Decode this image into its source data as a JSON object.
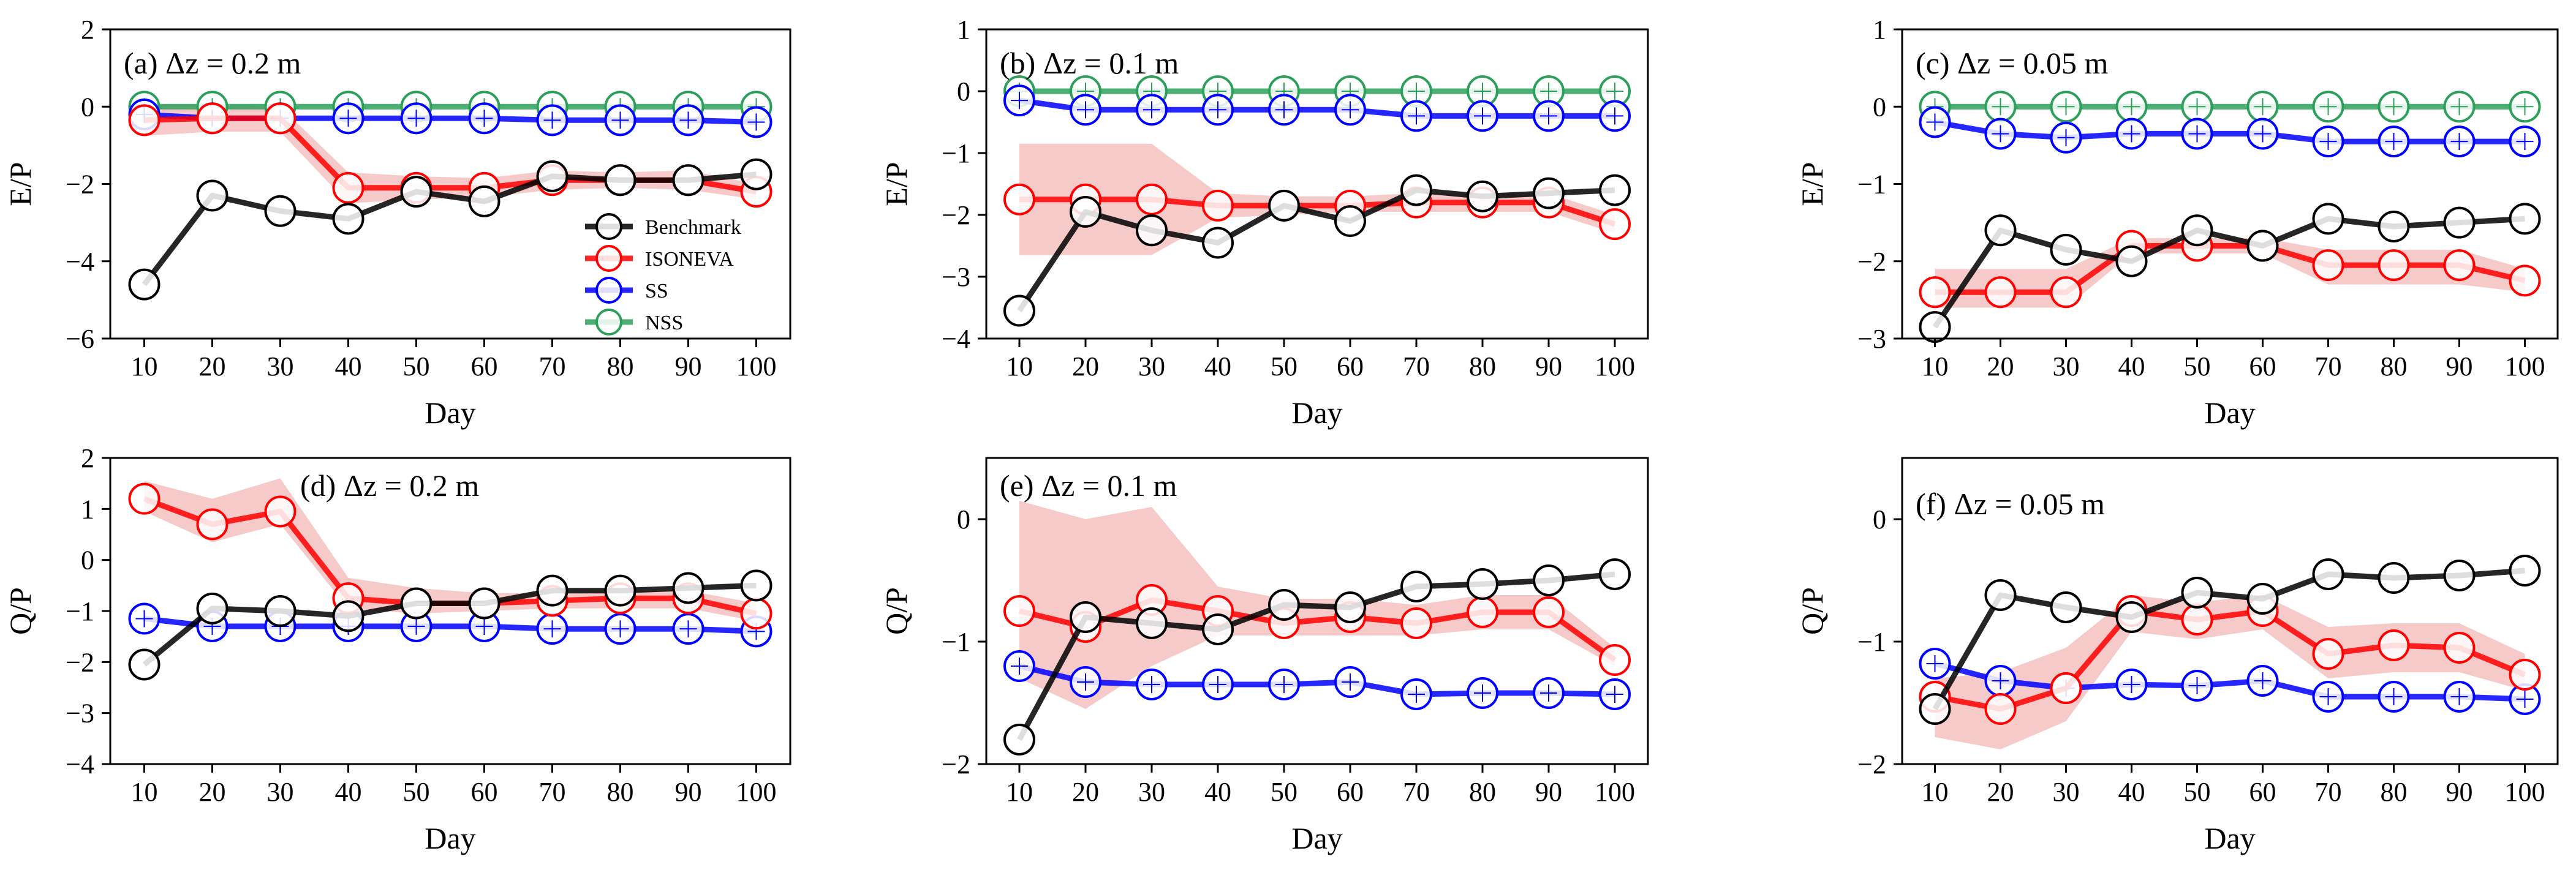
{
  "figure": {
    "legend": [
      {
        "name": "Benchmark",
        "color": "#000000"
      },
      {
        "name": "ISONEVA",
        "color": "#ff0000"
      },
      {
        "name": "SS",
        "color": "#0000ff"
      },
      {
        "name": "NSS",
        "color": "#2ca05a"
      }
    ],
    "colors": {
      "Benchmark": "#000000",
      "ISONEVA": "#ff0000",
      "SS": "#0000ff",
      "NSS": "#2ca05a",
      "band": "#f4b8b8"
    }
  },
  "chart_data": [
    {
      "type": "line",
      "panel": "(a) Δz = 0.2 m",
      "xlabel": "Day",
      "ylabel": "E/P",
      "x": [
        10,
        20,
        30,
        40,
        50,
        60,
        70,
        80,
        90,
        100
      ],
      "ylim": [
        -6,
        2
      ],
      "yticks": [
        -6,
        -4,
        -2,
        0,
        2
      ],
      "series": [
        {
          "name": "Benchmark",
          "values": [
            -4.6,
            -2.3,
            -2.7,
            -2.9,
            -2.2,
            -2.45,
            -1.8,
            -1.9,
            -1.9,
            -1.75
          ]
        },
        {
          "name": "ISONEVA",
          "values": [
            -0.35,
            -0.3,
            -0.3,
            -2.1,
            -2.1,
            -2.1,
            -1.9,
            -1.9,
            -1.9,
            -2.2
          ],
          "band_lower": [
            -0.75,
            -0.65,
            -0.65,
            -2.5,
            -2.4,
            -2.35,
            -2.15,
            -2.1,
            -2.15,
            -2.4
          ],
          "band_upper": [
            0.05,
            0.05,
            0.0,
            -1.7,
            -1.8,
            -1.85,
            -1.65,
            -1.7,
            -1.65,
            -2.0
          ]
        },
        {
          "name": "SS",
          "values": [
            -0.2,
            -0.3,
            -0.3,
            -0.3,
            -0.3,
            -0.3,
            -0.35,
            -0.35,
            -0.35,
            -0.4
          ]
        },
        {
          "name": "NSS",
          "values": [
            0,
            0,
            0,
            0,
            0,
            0,
            0,
            0,
            0,
            0
          ]
        }
      ]
    },
    {
      "type": "line",
      "panel": "(b) Δz = 0.1 m",
      "xlabel": "Day",
      "ylabel": "E/P",
      "x": [
        10,
        20,
        30,
        40,
        50,
        60,
        70,
        80,
        90,
        100
      ],
      "ylim": [
        -4,
        1
      ],
      "yticks": [
        -4,
        -3,
        -2,
        -1,
        0,
        1
      ],
      "series": [
        {
          "name": "Benchmark",
          "values": [
            -3.55,
            -1.95,
            -2.25,
            -2.45,
            -1.85,
            -2.1,
            -1.6,
            -1.7,
            -1.65,
            -1.6
          ]
        },
        {
          "name": "ISONEVA",
          "values": [
            -1.75,
            -1.75,
            -1.75,
            -1.85,
            -1.85,
            -1.85,
            -1.8,
            -1.8,
            -1.8,
            -2.15
          ],
          "band_lower": [
            -2.65,
            -2.65,
            -2.65,
            -2.05,
            -2.0,
            -1.95,
            -1.95,
            -1.95,
            -1.95,
            -2.3
          ],
          "band_upper": [
            -0.85,
            -0.85,
            -0.85,
            -1.65,
            -1.7,
            -1.7,
            -1.65,
            -1.65,
            -1.65,
            -2.0
          ]
        },
        {
          "name": "SS",
          "values": [
            -0.15,
            -0.3,
            -0.3,
            -0.3,
            -0.3,
            -0.3,
            -0.4,
            -0.4,
            -0.4,
            -0.4
          ]
        },
        {
          "name": "NSS",
          "values": [
            0,
            0,
            0,
            0,
            0,
            0,
            0,
            0,
            0,
            0
          ]
        }
      ]
    },
    {
      "type": "line",
      "panel": "(c) Δz = 0.05 m",
      "xlabel": "Day",
      "ylabel": "E/P",
      "x": [
        10,
        20,
        30,
        40,
        50,
        60,
        70,
        80,
        90,
        100
      ],
      "ylim": [
        -3,
        1
      ],
      "yticks": [
        -3,
        -2,
        -1,
        0,
        1
      ],
      "series": [
        {
          "name": "Benchmark",
          "values": [
            -2.85,
            -1.6,
            -1.85,
            -2.0,
            -1.6,
            -1.8,
            -1.45,
            -1.55,
            -1.5,
            -1.45
          ]
        },
        {
          "name": "ISONEVA",
          "values": [
            -2.4,
            -2.4,
            -2.4,
            -1.8,
            -1.8,
            -1.8,
            -2.05,
            -2.05,
            -2.05,
            -2.25
          ],
          "band_lower": [
            -2.6,
            -2.6,
            -2.6,
            -1.9,
            -1.9,
            -1.9,
            -2.3,
            -2.3,
            -2.3,
            -2.4
          ],
          "band_upper": [
            -2.1,
            -2.1,
            -2.1,
            -1.7,
            -1.7,
            -1.7,
            -1.85,
            -1.85,
            -1.85,
            -2.1
          ]
        },
        {
          "name": "SS",
          "values": [
            -0.2,
            -0.35,
            -0.4,
            -0.35,
            -0.35,
            -0.35,
            -0.45,
            -0.45,
            -0.45,
            -0.45
          ]
        },
        {
          "name": "NSS",
          "values": [
            0,
            0,
            0,
            0,
            0,
            0,
            0,
            0,
            0,
            0
          ]
        }
      ]
    },
    {
      "type": "line",
      "panel": "(d) Δz = 0.2 m",
      "xlabel": "Day",
      "ylabel": "Q/P",
      "x": [
        10,
        20,
        30,
        40,
        50,
        60,
        70,
        80,
        90,
        100
      ],
      "ylim": [
        -4,
        2
      ],
      "yticks": [
        -4,
        -3,
        -2,
        -1,
        0,
        1,
        2
      ],
      "series": [
        {
          "name": "Benchmark",
          "values": [
            -2.05,
            -0.95,
            -1.0,
            -1.1,
            -0.85,
            -0.85,
            -0.6,
            -0.6,
            -0.55,
            -0.5
          ]
        },
        {
          "name": "ISONEVA",
          "values": [
            1.2,
            0.7,
            0.95,
            -0.75,
            -0.85,
            -0.85,
            -0.8,
            -0.75,
            -0.75,
            -1.05
          ],
          "band_lower": [
            0.95,
            0.35,
            0.7,
            -0.95,
            -1.05,
            -1.0,
            -0.95,
            -0.95,
            -0.95,
            -1.2
          ],
          "band_upper": [
            1.55,
            1.2,
            1.6,
            -0.35,
            -0.55,
            -0.65,
            -0.65,
            -0.6,
            -0.6,
            -0.85
          ]
        },
        {
          "name": "SS",
          "values": [
            -1.15,
            -1.3,
            -1.3,
            -1.3,
            -1.3,
            -1.3,
            -1.35,
            -1.35,
            -1.35,
            -1.4
          ]
        }
      ]
    },
    {
      "type": "line",
      "panel": "(e) Δz = 0.1 m",
      "xlabel": "Day",
      "ylabel": "Q/P",
      "x": [
        10,
        20,
        30,
        40,
        50,
        60,
        70,
        80,
        90,
        100
      ],
      "ylim": [
        -2,
        0.5
      ],
      "yticks": [
        -2,
        -1,
        0
      ],
      "series": [
        {
          "name": "Benchmark",
          "values": [
            -1.8,
            -0.8,
            -0.85,
            -0.9,
            -0.7,
            -0.72,
            -0.55,
            -0.53,
            -0.5,
            -0.45
          ]
        },
        {
          "name": "ISONEVA",
          "values": [
            -0.75,
            -0.88,
            -0.66,
            -0.75,
            -0.85,
            -0.8,
            -0.85,
            -0.76,
            -0.76,
            -1.15
          ],
          "band_lower": [
            -1.3,
            -1.55,
            -1.2,
            -0.95,
            -0.95,
            -0.95,
            -0.95,
            -0.9,
            -0.9,
            -1.2
          ],
          "band_upper": [
            0.15,
            0.0,
            0.1,
            -0.55,
            -0.65,
            -0.65,
            -0.7,
            -0.62,
            -0.62,
            -1.05
          ]
        },
        {
          "name": "SS",
          "values": [
            -1.2,
            -1.33,
            -1.35,
            -1.35,
            -1.35,
            -1.33,
            -1.43,
            -1.42,
            -1.42,
            -1.43
          ]
        }
      ]
    },
    {
      "type": "line",
      "panel": "(f) Δz = 0.05 m",
      "xlabel": "Day",
      "ylabel": "Q/P",
      "x": [
        10,
        20,
        30,
        40,
        50,
        60,
        70,
        80,
        90,
        100
      ],
      "ylim": [
        -2,
        0.5
      ],
      "yticks": [
        -2,
        -1,
        0
      ],
      "series": [
        {
          "name": "Benchmark",
          "values": [
            -1.55,
            -0.62,
            -0.72,
            -0.8,
            -0.6,
            -0.65,
            -0.45,
            -0.48,
            -0.46,
            -0.42
          ]
        },
        {
          "name": "ISONEVA",
          "values": [
            -1.45,
            -1.55,
            -1.38,
            -0.75,
            -0.82,
            -0.75,
            -1.1,
            -1.03,
            -1.05,
            -1.27
          ],
          "band_lower": [
            -1.78,
            -1.88,
            -1.65,
            -0.92,
            -0.98,
            -0.9,
            -1.3,
            -1.25,
            -1.25,
            -1.4
          ],
          "band_upper": [
            -1.3,
            -1.25,
            -1.05,
            -0.62,
            -0.68,
            -0.62,
            -0.88,
            -0.85,
            -0.85,
            -1.1
          ]
        },
        {
          "name": "SS",
          "values": [
            -1.18,
            -1.32,
            -1.38,
            -1.35,
            -1.36,
            -1.32,
            -1.45,
            -1.45,
            -1.45,
            -1.47
          ]
        }
      ]
    }
  ]
}
